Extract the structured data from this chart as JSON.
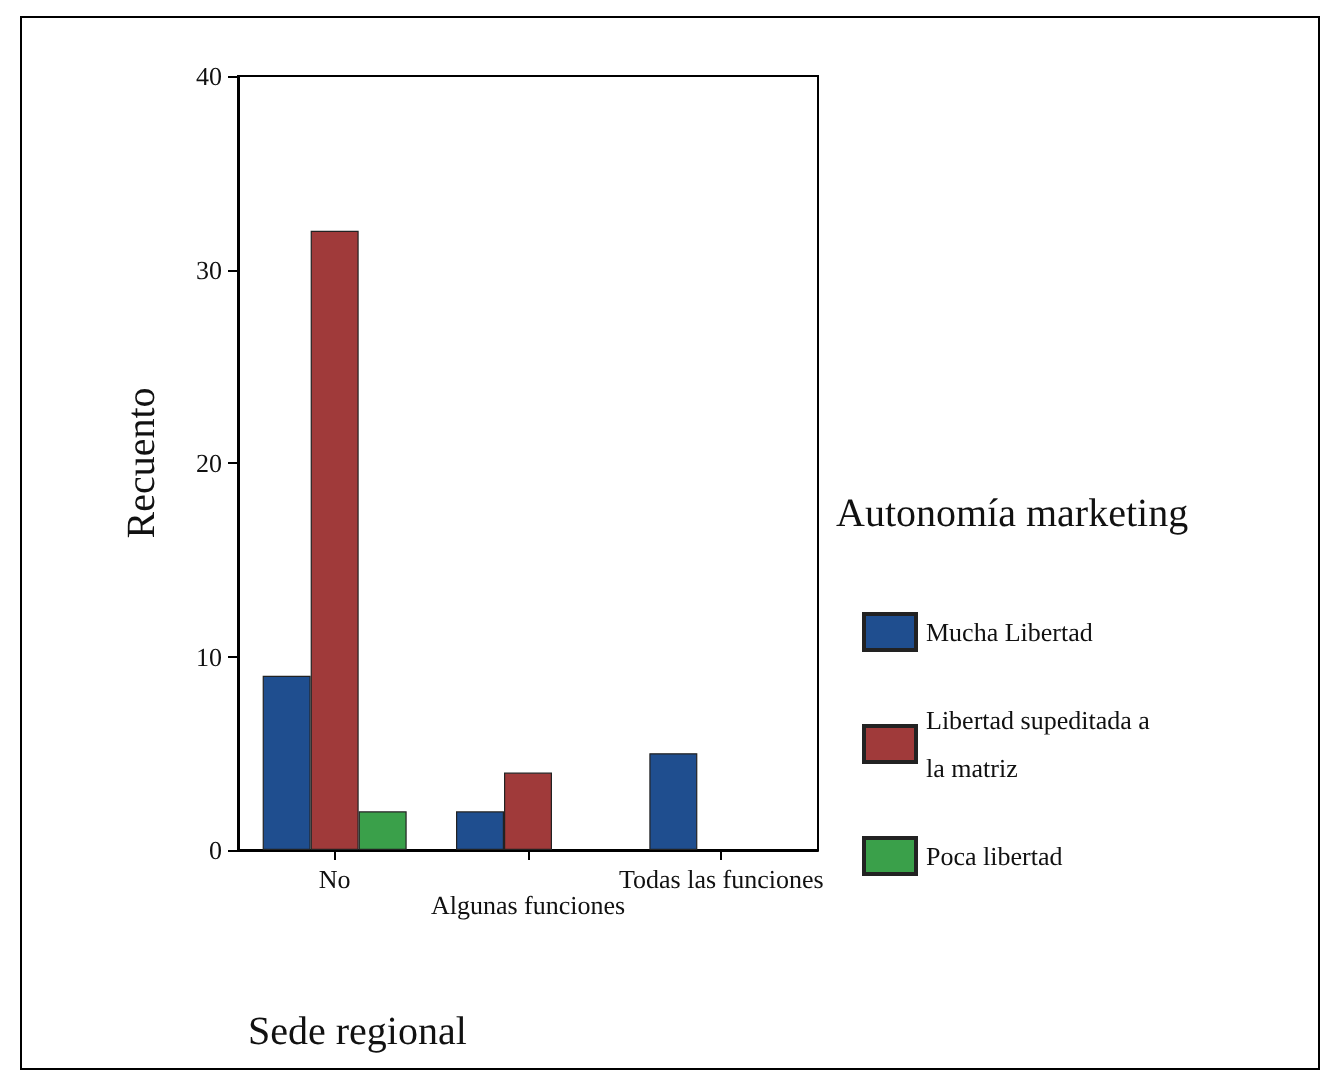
{
  "chart_data": {
    "type": "bar",
    "xlabel": "Sede regional",
    "ylabel": "Recuento",
    "legend_title": "Autonomía marketing",
    "categories": [
      "No",
      "Algunas funciones",
      "Todas las funciones"
    ],
    "series": [
      {
        "name": "Mucha Libertad",
        "color": "#1f4e8f",
        "values": [
          9,
          2,
          5
        ]
      },
      {
        "name": "Libertad supeditada a la matriz",
        "color": "#a03a3a",
        "values": [
          32,
          4,
          null
        ]
      },
      {
        "name": "Poca libertad",
        "color": "#3aa04a",
        "values": [
          2,
          null,
          null
        ]
      }
    ],
    "ylim": [
      0,
      40
    ],
    "yticks": [
      0,
      10,
      20,
      30,
      40
    ],
    "grid": false,
    "legend": "right"
  }
}
